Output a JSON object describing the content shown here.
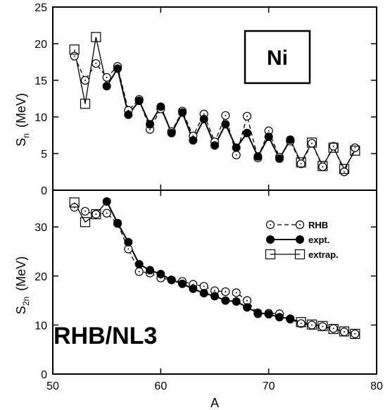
{
  "chart_data": {
    "type": "line",
    "xlabel": "A",
    "xlim": [
      50,
      80
    ],
    "x_ticks": [
      50,
      60,
      70,
      80
    ],
    "panels": [
      {
        "id": "top",
        "ylabel_main": "S",
        "ylabel_sub": "n",
        "ylabel_unit": "(MeV)",
        "ylim": [
          0,
          25
        ],
        "y_ticks": [
          0,
          5,
          10,
          15,
          20,
          25
        ],
        "box_label": "Ni",
        "series": [
          {
            "key": "rhb",
            "style": "dashed-open-circle",
            "x": [
              52,
              53,
              54,
              55,
              56,
              57,
              58,
              59,
              60,
              61,
              62,
              63,
              64,
              65,
              66,
              67,
              68,
              69,
              70,
              71,
              72,
              73,
              74,
              75,
              76,
              77,
              78
            ],
            "y": [
              18.3,
              15.0,
              17.3,
              15.4,
              16.9,
              10.9,
              12.4,
              8.3,
              11.1,
              8.0,
              10.8,
              7.4,
              10.4,
              6.6,
              10.2,
              4.8,
              10.1,
              4.4,
              8.1,
              4.5,
              6.7,
              3.6,
              6.4,
              3.2,
              6.0,
              2.5,
              5.8
            ]
          },
          {
            "key": "expt",
            "style": "solid-filled-circle",
            "x": [
              55,
              56,
              57,
              58,
              59,
              60,
              61,
              62,
              63,
              64,
              65,
              66,
              67,
              68,
              69,
              70,
              71,
              72
            ],
            "y": [
              14.2,
              16.6,
              10.3,
              12.2,
              9.0,
              11.4,
              7.8,
              10.6,
              6.8,
              9.7,
              6.1,
              9.0,
              5.8,
              7.8,
              4.6,
              7.3,
              4.3,
              6.9
            ]
          },
          {
            "key": "extrap",
            "style": "solid-open-square",
            "x": [
              52,
              53,
              54,
              73,
              74,
              75,
              76,
              77,
              78
            ],
            "y": [
              19.2,
              11.8,
              20.9,
              3.8,
              6.5,
              3.3,
              5.8,
              2.9,
              5.4
            ],
            "segments": [
              [
                52,
                53,
                54,
                55
              ],
              [
                72,
                73,
                74,
                75,
                76,
                77,
                78
              ]
            ]
          }
        ]
      },
      {
        "id": "bottom",
        "ylabel_main": "S",
        "ylabel_sub": "2n",
        "ylabel_unit": "(MeV)",
        "ylim": [
          0,
          37.5
        ],
        "y_ticks": [
          0,
          10,
          20,
          30
        ],
        "model_label": "RHB/NL3",
        "legend": [
          {
            "key": "rhb",
            "label": "RHB"
          },
          {
            "key": "expt",
            "label": "expt."
          },
          {
            "key": "extrap",
            "label": "extrap."
          }
        ],
        "series": [
          {
            "key": "rhb",
            "style": "dashed-open-circle",
            "x": [
              52,
              53,
              54,
              55,
              56,
              57,
              58,
              59,
              60,
              61,
              62,
              63,
              64,
              65,
              66,
              67,
              68,
              69,
              70,
              71,
              72,
              73,
              74,
              75,
              76,
              77,
              78
            ],
            "y": [
              34.0,
              33.2,
              32.6,
              32.8,
              30.7,
              25.5,
              20.9,
              20.6,
              19.6,
              19.2,
              18.9,
              18.3,
              17.9,
              17.0,
              16.8,
              16.6,
              15.0,
              12.3,
              12.4,
              12.3,
              11.2,
              10.3,
              10.0,
              9.7,
              9.3,
              8.6,
              8.2
            ]
          },
          {
            "key": "expt",
            "style": "solid-filled-circle",
            "x": [
              55,
              56,
              57,
              58,
              59,
              60,
              61,
              62,
              63,
              64,
              65,
              66,
              67,
              68,
              69,
              70,
              71,
              72
            ],
            "y": [
              35.2,
              30.8,
              26.9,
              22.4,
              21.2,
              20.4,
              19.2,
              18.4,
              17.4,
              16.5,
              15.9,
              15.0,
              14.8,
              13.6,
              12.5,
              12.2,
              11.6,
              11.3
            ]
          },
          {
            "key": "extrap",
            "style": "solid-open-square",
            "x": [
              52,
              53,
              54,
              73,
              74,
              75,
              76,
              77,
              78
            ],
            "y": [
              35.0,
              31.0,
              32.6,
              10.6,
              10.1,
              9.8,
              9.2,
              8.7,
              8.2
            ],
            "segments": [
              [
                52,
                53,
                54,
                55
              ],
              [
                72,
                73,
                74,
                75,
                76,
                77,
                78
              ]
            ]
          }
        ]
      }
    ]
  }
}
